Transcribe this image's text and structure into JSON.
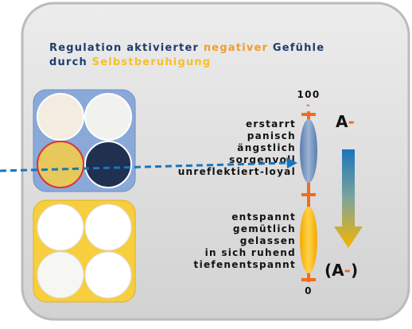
{
  "title": {
    "line1": [
      {
        "text": "Regulation aktivierter "
      },
      {
        "text": "negativer"
      },
      {
        "text": " Gefühle"
      }
    ],
    "line2": [
      {
        "text": "durch "
      },
      {
        "text": "Selbstberuhigung"
      }
    ]
  },
  "scale": {
    "top": "100",
    "top_mark": "-",
    "bottom": "0"
  },
  "upper_states": [
    "erstarrt",
    "panisch",
    "ängstlich",
    "sorgenvoll",
    "unreflektiert-loyal"
  ],
  "lower_states": [
    "entspannt",
    "gemütlich",
    "gelassen",
    "in sich ruhend",
    "tiefenentspannt"
  ],
  "upper_label": [
    "A",
    "-"
  ],
  "lower_label": [
    "(A",
    "-",
    ")"
  ]
}
